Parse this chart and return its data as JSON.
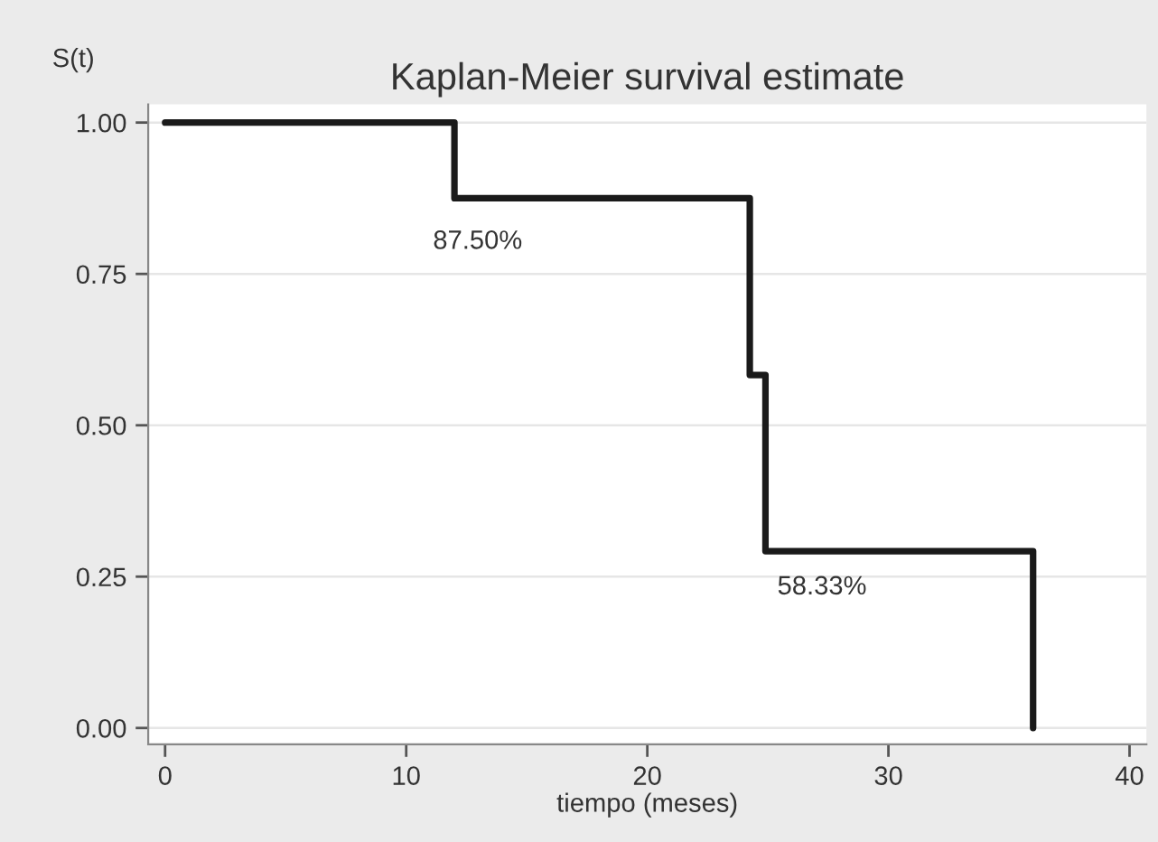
{
  "chart_data": {
    "type": "step",
    "title": "Kaplan-Meier survival estimate",
    "xlabel": "tiempo (meses)",
    "ylabel": "S(t)",
    "x": [
      0,
      12,
      24.25,
      24.9,
      36
    ],
    "series": [
      {
        "color": "#1a1a1a",
        "values": [
          1,
          0.875,
          0.583,
          0.292,
          0
        ]
      }
    ],
    "xlim": [
      -0.7,
      40.7
    ],
    "xticks": [
      0,
      10,
      20,
      30,
      40
    ],
    "ylim": [
      -0.027,
      1.03
    ],
    "yticks": [
      {
        "value": 0,
        "label": "0.00"
      },
      {
        "value": 0.25,
        "label": "0.25"
      },
      {
        "value": 0.5,
        "label": "0.50"
      },
      {
        "value": 0.75,
        "label": "0.75"
      },
      {
        "value": 1,
        "label": "1.00"
      }
    ],
    "grid": "y",
    "line_style": "solid",
    "marker": "none",
    "annotations": [
      "87.50%",
      "58.33%"
    ]
  }
}
